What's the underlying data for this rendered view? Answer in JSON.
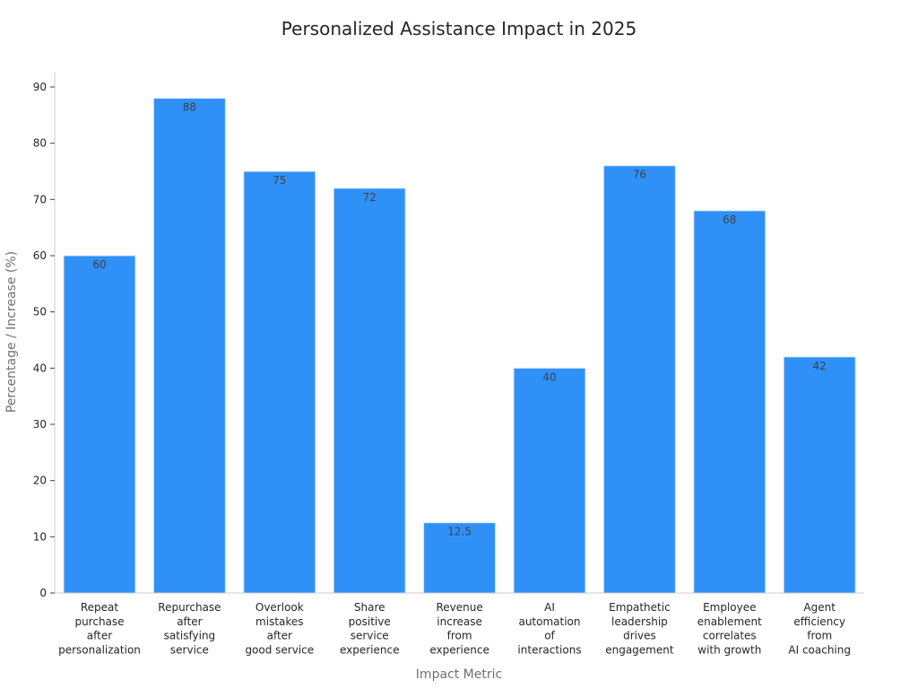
{
  "chart_data": {
    "type": "bar",
    "title": "Personalized Assistance Impact in 2025",
    "xlabel": "Impact Metric",
    "ylabel": "Percentage / Increase (%)",
    "ylim": [
      0,
      92
    ],
    "yticks": [
      0,
      10,
      20,
      30,
      40,
      50,
      60,
      70,
      80,
      90
    ],
    "grid": false,
    "bar_color": "#2f91f8",
    "categories": [
      [
        "Repeat",
        "purchase",
        "after",
        "personalization"
      ],
      [
        "Repurchase",
        "after",
        "satisfying",
        "service"
      ],
      [
        "Overlook",
        "mistakes",
        "after",
        "good service"
      ],
      [
        "Share",
        "positive",
        "service",
        "experience"
      ],
      [
        "Revenue",
        "increase",
        "from",
        "experience"
      ],
      [
        "AI",
        "automation",
        "of",
        "interactions"
      ],
      [
        "Empathetic",
        "leadership",
        "drives",
        "engagement"
      ],
      [
        "Employee",
        "enablement",
        "correlates",
        "with growth"
      ],
      [
        "Agent",
        "efficiency",
        "from",
        "AI coaching"
      ]
    ],
    "values": [
      60,
      88,
      75,
      72,
      12.5,
      40,
      76,
      68,
      42
    ],
    "value_labels": [
      "60",
      "88",
      "75",
      "72",
      "12.5",
      "40",
      "76",
      "68",
      "42"
    ]
  }
}
